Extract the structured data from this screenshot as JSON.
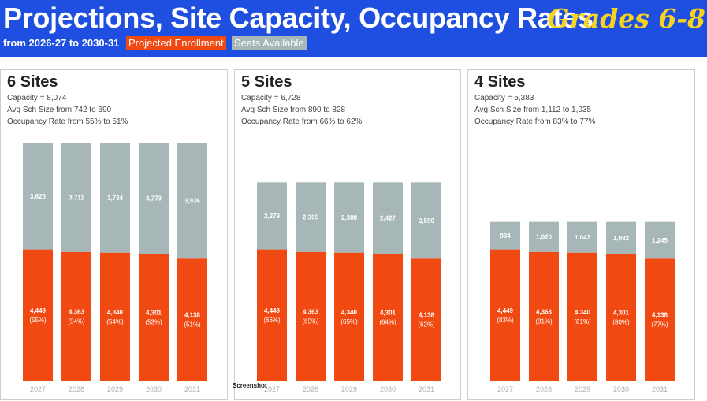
{
  "header": {
    "title": "Projections, Site Capacity, Occupancy Rates",
    "grades": "Grades 6-8",
    "date_range": "from 2026-27 to 2030-31",
    "legend_enrollment": "Projected Enrollment",
    "legend_seats": "Seats Available"
  },
  "colors": {
    "header_bg": "#1f4fe0",
    "enrollment": "#f04a12",
    "seats": "#a7b6b7",
    "grades_text": "#f7d21e"
  },
  "watermark": "Screenshot",
  "panels": [
    {
      "title": "6 Sites",
      "capacity": "Capacity = 8,074",
      "avg_size": "Avg Sch Size from 742 to 690",
      "occupancy": "Occupancy Rate from 55% to 51%"
    },
    {
      "title": "5 Sites",
      "capacity": "Capacity = 6,728",
      "avg_size": "Avg Sch Size from 890 to 828",
      "occupancy": "Occupancy Rate from 66% to 62%"
    },
    {
      "title": "4 Sites",
      "capacity": "Capacity = 5,383",
      "avg_size": "Avg Sch Size from 1,112 to 1,035",
      "occupancy": "Occupancy Rate from 83% to 77%"
    }
  ],
  "chart_data": [
    {
      "type": "bar",
      "stacked": true,
      "categories": [
        "2027",
        "2028",
        "2029",
        "2030",
        "2031"
      ],
      "ylim": [
        0,
        8074
      ],
      "series": [
        {
          "name": "Projected Enrollment",
          "values": [
            4449,
            4363,
            4340,
            4301,
            4138
          ],
          "value_labels": [
            "4,449",
            "4,363",
            "4,340",
            "4,301",
            "4,138"
          ],
          "pct_labels": [
            "(55%)",
            "(54%)",
            "(54%)",
            "(53%)",
            "(51%)"
          ]
        },
        {
          "name": "Seats Available",
          "values": [
            3625,
            3711,
            3734,
            3773,
            3936
          ],
          "value_labels": [
            "3,625",
            "3,711",
            "3,734",
            "3,773",
            "3,936"
          ]
        }
      ]
    },
    {
      "type": "bar",
      "stacked": true,
      "categories": [
        "2027",
        "2028",
        "2029",
        "2030",
        "2031"
      ],
      "ylim": [
        0,
        8074
      ],
      "series": [
        {
          "name": "Projected Enrollment",
          "values": [
            4449,
            4363,
            4340,
            4301,
            4138
          ],
          "value_labels": [
            "4,449",
            "4,363",
            "4,340",
            "4,301",
            "4,138"
          ],
          "pct_labels": [
            "(66%)",
            "(65%)",
            "(65%)",
            "(64%)",
            "(62%)"
          ]
        },
        {
          "name": "Seats Available",
          "values": [
            2279,
            2365,
            2388,
            2427,
            2590
          ],
          "value_labels": [
            "2,279",
            "2,365",
            "2,388",
            "2,427",
            "2,590"
          ]
        }
      ]
    },
    {
      "type": "bar",
      "stacked": true,
      "categories": [
        "2027",
        "2028",
        "2029",
        "2030",
        "2031"
      ],
      "ylim": [
        0,
        8074
      ],
      "series": [
        {
          "name": "Projected Enrollment",
          "values": [
            4449,
            4363,
            4340,
            4301,
            4138
          ],
          "value_labels": [
            "4,449",
            "4,363",
            "4,340",
            "4,301",
            "4,138"
          ],
          "pct_labels": [
            "(83%)",
            "(81%)",
            "(81%)",
            "(80%)",
            "(77%)"
          ]
        },
        {
          "name": "Seats Available",
          "values": [
            934,
            1020,
            1043,
            1082,
            1245
          ],
          "value_labels": [
            "934",
            "1,020",
            "1,043",
            "1,082",
            "1,245"
          ]
        }
      ]
    }
  ]
}
